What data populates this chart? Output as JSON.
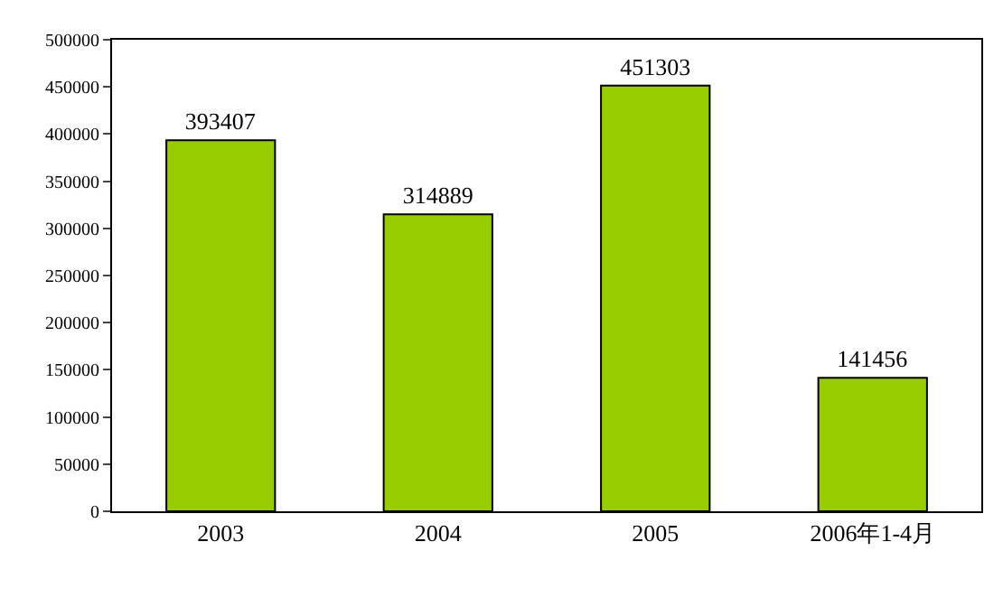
{
  "chart_data": {
    "type": "bar",
    "categories": [
      "2003",
      "2004",
      "2005",
      "2006年1-4月"
    ],
    "values": [
      393407,
      314889,
      451303,
      141456
    ],
    "color": "#99cc00",
    "ylim": [
      0,
      500000
    ],
    "yticks": [
      0,
      50000,
      100000,
      150000,
      200000,
      250000,
      300000,
      350000,
      400000,
      450000,
      500000
    ],
    "grid": false,
    "data_labels": true
  }
}
